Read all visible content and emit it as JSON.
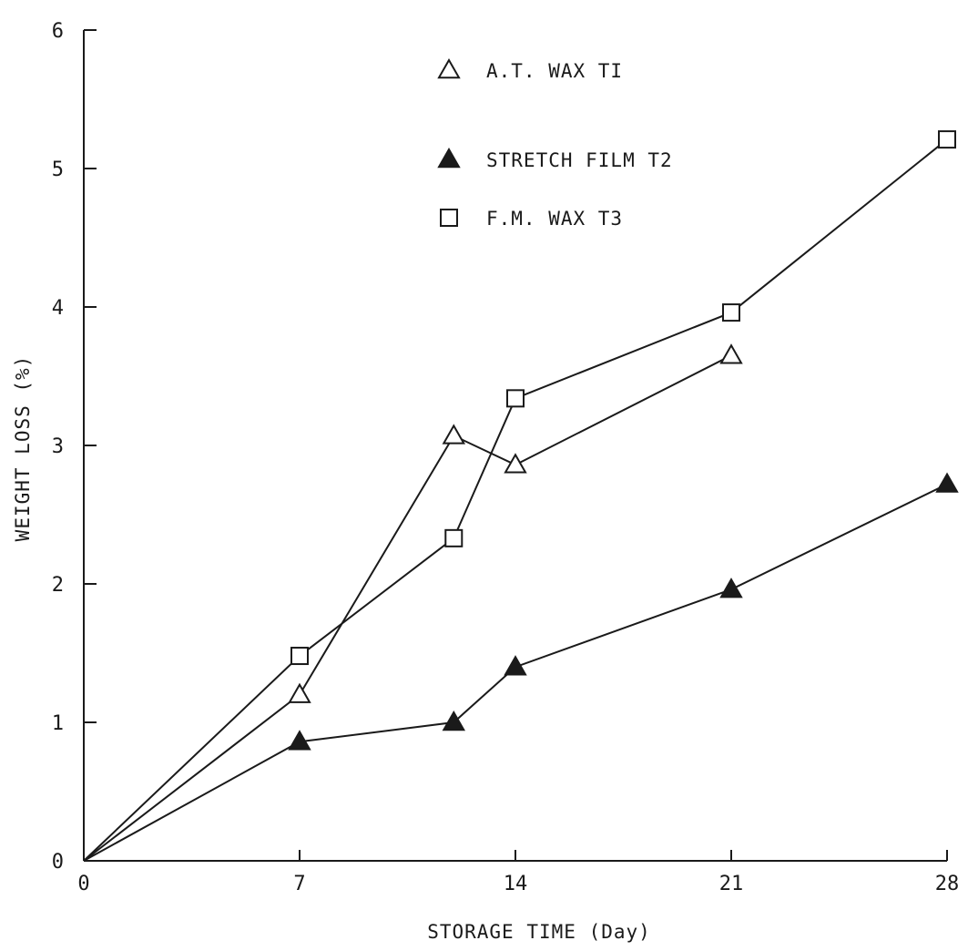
{
  "chart_data": {
    "type": "line",
    "title": "",
    "xlabel": "STORAGE TIME (Day)",
    "ylabel": "WEIGHT  LOSS  (%)",
    "xlim": [
      0,
      28
    ],
    "ylim": [
      0,
      6
    ],
    "x_ticks": [
      "0",
      "7",
      "14",
      "21",
      "28"
    ],
    "y_ticks": [
      "0",
      "1",
      "2",
      "3",
      "4",
      "5",
      "6"
    ],
    "grid": false,
    "legend_position": "top-center",
    "series": [
      {
        "name": "A.T. WAX TI",
        "marker": "triangle-open",
        "color": "#1a1a1a",
        "x": [
          0,
          7,
          12,
          14,
          21
        ],
        "y": [
          0,
          1.2,
          3.07,
          2.86,
          3.65
        ]
      },
      {
        "name": "STRETCH FILM T2",
        "marker": "triangle-filled",
        "color": "#1a1a1a",
        "x": [
          0,
          7,
          12,
          14,
          21,
          28
        ],
        "y": [
          0,
          0.86,
          1.0,
          1.4,
          1.96,
          2.72
        ]
      },
      {
        "name": "F.M. WAX T3",
        "marker": "square-open",
        "color": "#1a1a1a",
        "x": [
          0,
          7,
          12,
          14,
          21,
          28
        ],
        "y": [
          0,
          1.48,
          2.33,
          3.34,
          3.96,
          5.21
        ]
      }
    ]
  }
}
